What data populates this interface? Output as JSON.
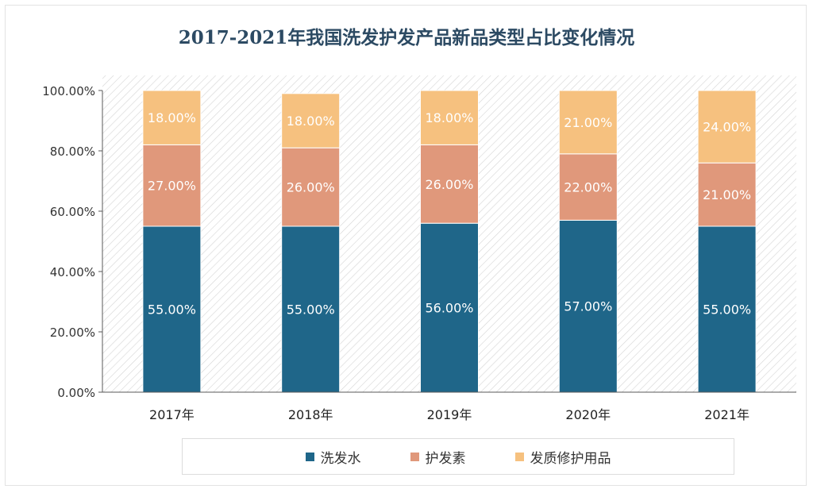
{
  "colors": {
    "series_0": "#1f6689",
    "series_1": "#e0987b",
    "series_2": "#f6c17f",
    "title": "#2c4a63",
    "axis": "#595959"
  },
  "chart_data": {
    "type": "bar",
    "stacked": true,
    "title": "2017-2021年我国洗发护发产品新品类型占比变化情况",
    "xlabel": "",
    "ylabel": "",
    "categories": [
      "2017年",
      "2018年",
      "2019年",
      "2020年",
      "2021年"
    ],
    "series": [
      {
        "name": "洗发水",
        "values": [
          55,
          55,
          56,
          57,
          55
        ],
        "labels": [
          "55.00%",
          "55.00%",
          "56.00%",
          "57.00%",
          "55.00%"
        ]
      },
      {
        "name": "护发素",
        "values": [
          27,
          26,
          26,
          22,
          21
        ],
        "labels": [
          "27.00%",
          "26.00%",
          "26.00%",
          "22.00%",
          "21.00%"
        ]
      },
      {
        "name": "发质修护用品",
        "values": [
          18,
          18,
          18,
          21,
          24
        ],
        "labels": [
          "18.00%",
          "18.00%",
          "18.00%",
          "21.00%",
          "24.00%"
        ]
      }
    ],
    "ylim": [
      0,
      100
    ],
    "yticks": [
      0,
      20,
      40,
      60,
      80,
      100
    ],
    "ytick_labels": [
      "0.00%",
      "20.00%",
      "40.00%",
      "60.00%",
      "80.00%",
      "100.00%"
    ],
    "legend": "bottom",
    "grid": false
  }
}
